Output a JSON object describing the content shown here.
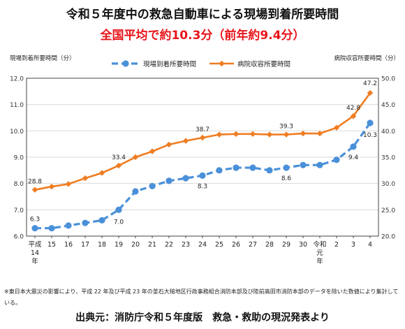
{
  "title": "令和５年度中の救急自動車による現場到着所要時間",
  "subtitle": "全国平均で約10.3分（前年約9.4分）",
  "note": "※東日本大震災の影響により、平成 22 年及び平成 23 年の釜石大槌地区行政事務組合消防本部及び陸前高田市消防本部のデータを除いた数値により集計している。",
  "source": "出典元：消防庁令和５年度版　救急・救助の現況発表より",
  "colors": {
    "onsite": "#4a90d9",
    "hospital": "#ef7d22",
    "grid": "#d9d9d9",
    "axis": "#444444"
  },
  "chart_data": {
    "type": "line",
    "categories": [
      "平成14年",
      "15",
      "16",
      "17",
      "18",
      "19",
      "20",
      "21",
      "22",
      "23",
      "24",
      "25",
      "26",
      "27",
      "28",
      "29",
      "30",
      "令和元年",
      "2",
      "3",
      "4"
    ],
    "y_left": {
      "label": "現場到着所要時間（分）",
      "range": [
        6.0,
        12.0
      ],
      "ticks": [
        "6.0",
        "7.0",
        "8.0",
        "9.0",
        "10.0",
        "11.0",
        "12.0"
      ]
    },
    "y_right": {
      "label": "病院収容所要時間（分）",
      "range": [
        20.0,
        50.0
      ],
      "ticks": [
        "20.0",
        "25.0",
        "30.0",
        "35.0",
        "40.0",
        "45.0",
        "50.0"
      ]
    },
    "legend_position": "top-center",
    "grid": true,
    "series": [
      {
        "name": "現場到着所要時間",
        "axis": "left",
        "style": "dashed",
        "values": [
          6.3,
          6.3,
          6.4,
          6.5,
          6.6,
          7.0,
          7.7,
          7.9,
          8.1,
          8.2,
          8.3,
          8.5,
          8.6,
          8.6,
          8.5,
          8.6,
          8.7,
          8.7,
          8.9,
          9.4,
          10.3
        ],
        "labels": [
          {
            "index": 0,
            "text": "6.3"
          },
          {
            "index": 5,
            "text": "7.0"
          },
          {
            "index": 10,
            "text": "8.3"
          },
          {
            "index": 15,
            "text": "8.6"
          },
          {
            "index": 19,
            "text": "9.4"
          },
          {
            "index": 20,
            "text": "10.3"
          }
        ]
      },
      {
        "name": "病院収容所要時間",
        "axis": "right",
        "style": "solid",
        "values": [
          28.8,
          29.4,
          29.9,
          31.0,
          32.0,
          33.4,
          35.0,
          36.1,
          37.4,
          38.1,
          38.7,
          39.3,
          39.4,
          39.4,
          39.3,
          39.3,
          39.5,
          39.5,
          40.6,
          42.8,
          47.2
        ],
        "labels": [
          {
            "index": 0,
            "text": "28.8"
          },
          {
            "index": 5,
            "text": "33.4"
          },
          {
            "index": 10,
            "text": "38.7"
          },
          {
            "index": 15,
            "text": "39.3"
          },
          {
            "index": 19,
            "text": "42.8"
          },
          {
            "index": 20,
            "text": "47.2"
          }
        ]
      }
    ]
  }
}
